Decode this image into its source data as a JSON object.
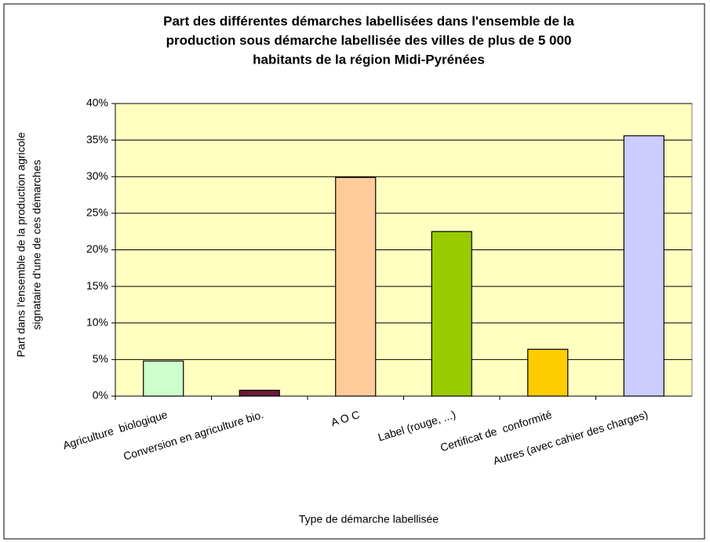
{
  "chart_data": {
    "type": "bar",
    "title": [
      "Part des différentes démarches labellisées dans l'ensemble de la",
      "production sous démarche labellisée des villes de plus de 5 000",
      "habitants de la région Midi-Pyrénées"
    ],
    "y_label": [
      "Part dans l'ensemble de la production agricole",
      "signataire d'une de ces démarches"
    ],
    "x_label": "Type de démarche labellisée",
    "categories": [
      "Agriculture  biologique",
      "Conversion en agriculture bio.",
      "A O C",
      "Label (rouge, ...)",
      "Certificat de  conformité",
      "Autres (avec cahier des charges)"
    ],
    "values": [
      4.8,
      0.8,
      29.9,
      22.5,
      6.4,
      35.6
    ],
    "colors": [
      "#ccffcc",
      "#6b1a3a",
      "#ffcc99",
      "#99cc00",
      "#ffcc00",
      "#ccccff"
    ],
    "ylim": [
      0,
      40
    ],
    "yticks": [
      {
        "value": 0,
        "label": "0%"
      },
      {
        "value": 5,
        "label": "5%"
      },
      {
        "value": 10,
        "label": "10%"
      },
      {
        "value": 15,
        "label": "15%"
      },
      {
        "value": 20,
        "label": "20%"
      },
      {
        "value": 25,
        "label": "25%"
      },
      {
        "value": 30,
        "label": "30%"
      },
      {
        "value": 35,
        "label": "35%"
      },
      {
        "value": 40,
        "label": "40%"
      }
    ],
    "grid": true
  }
}
